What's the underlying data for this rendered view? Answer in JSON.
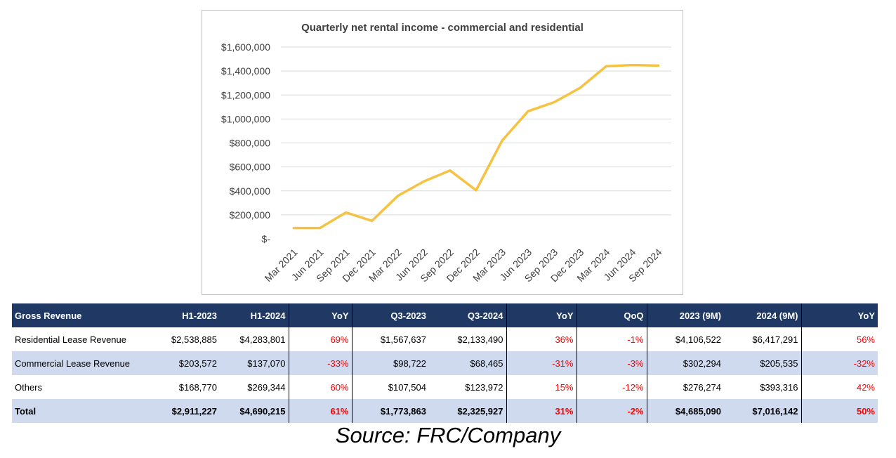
{
  "chart_data": {
    "type": "line",
    "title": "Quarterly net rental income - commercial and residential",
    "xlabel": "",
    "ylabel": "",
    "categories": [
      "Mar 2021",
      "Jun 2021",
      "Sep 2021",
      "Dec 2021",
      "Mar 2022",
      "Jun 2022",
      "Sep 2022",
      "Dec 2022",
      "Mar 2023",
      "Jun 2023",
      "Sep 2023",
      "Dec 2023",
      "Mar 2024",
      "Jun 2024",
      "Sep 2024"
    ],
    "series": [
      {
        "name": "",
        "values": [
          90000,
          90000,
          220000,
          150000,
          360000,
          480000,
          570000,
          405000,
          820000,
          1065000,
          1140000,
          1260000,
          1440000,
          1450000,
          1445000
        ]
      }
    ],
    "ylim": [
      0,
      1600000
    ],
    "yticks": [
      0,
      200000,
      400000,
      600000,
      800000,
      1000000,
      1200000,
      1400000,
      1600000
    ],
    "ytick_labels": [
      "$-",
      "$200,000",
      "$400,000",
      "$600,000",
      "$800,000",
      "$1,000,000",
      "$1,200,000",
      "$1,400,000",
      "$1,600,000"
    ],
    "grid": true,
    "legend": "none",
    "line_color": "#f5c242"
  },
  "table": {
    "headers": [
      "Gross Revenue",
      "H1-2023",
      "H1-2024",
      "YoY",
      "Q3-2023",
      "Q3-2024",
      "YoY",
      "QoQ",
      "2023 (9M)",
      "2024 (9M)",
      "YoY"
    ],
    "rows": [
      {
        "name": "Residential Lease Revenue",
        "style": "normal",
        "cells": [
          "Residential Lease Revenue",
          "$2,538,885",
          "$4,283,801",
          "69%",
          "$1,567,637",
          "$2,133,490",
          "36%",
          "-1%",
          "$4,106,522",
          "$6,417,291",
          "56%"
        ]
      },
      {
        "name": "Commercial Lease Revenue",
        "style": "alt",
        "cells": [
          "Commercial Lease Revenue",
          "$203,572",
          "$137,070",
          "-33%",
          "$98,722",
          "$68,465",
          "-31%",
          "-3%",
          "$302,294",
          "$205,535",
          "-32%"
        ]
      },
      {
        "name": "Others",
        "style": "normal",
        "cells": [
          "Others",
          "$168,770",
          "$269,344",
          "60%",
          "$107,504",
          "$123,972",
          "15%",
          "-12%",
          "$276,274",
          "$393,316",
          "42%"
        ]
      },
      {
        "name": "Total",
        "style": "total",
        "cells": [
          "Total",
          "$2,911,227",
          "$4,690,215",
          "61%",
          "$1,773,863",
          "$2,325,927",
          "31%",
          "-2%",
          "$4,685,090",
          "$7,016,142",
          "50%"
        ]
      }
    ],
    "header_color": "#1f3864",
    "alt_row_color": "#cfdaee",
    "percent_color": "#ff0000"
  },
  "source": "Source: FRC/Company"
}
